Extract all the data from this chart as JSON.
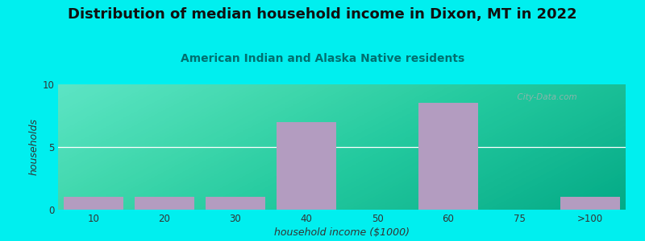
{
  "title": "Distribution of median household income in Dixon, MT in 2022",
  "subtitle": "American Indian and Alaska Native residents",
  "xlabel": "household income ($1000)",
  "ylabel": "households",
  "categories": [
    "10",
    "20",
    "30",
    "40",
    "50",
    "60",
    "75",
    ">100"
  ],
  "values": [
    1,
    1,
    1,
    7,
    0,
    8.5,
    0,
    1
  ],
  "bar_color": "#b39cc0",
  "background_outer": "#00efef",
  "ylim": [
    0,
    10
  ],
  "yticks": [
    0,
    5,
    10
  ],
  "title_fontsize": 13,
  "subtitle_fontsize": 10,
  "axis_label_fontsize": 9,
  "tick_fontsize": 8.5,
  "title_color": "#111111",
  "subtitle_color": "#007070",
  "watermark": "  City-Data.com"
}
